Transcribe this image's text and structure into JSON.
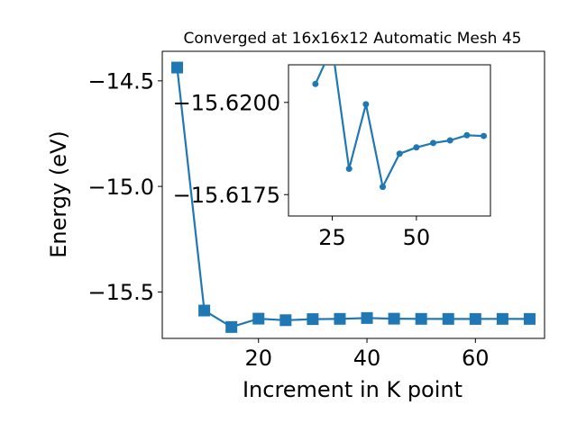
{
  "colors": {
    "series": "#1f77b4",
    "axes": "#000000",
    "background": "#ffffff"
  },
  "chart_data": [
    {
      "type": "line",
      "title": "Converged at 16x16x12 Automatic Mesh 45",
      "xlabel": "Increment in K point",
      "ylabel": "Energy (eV)",
      "marker": "square",
      "grid": false,
      "legend": "none",
      "xlim": [
        2.25,
        72.75
      ],
      "ylim": [
        -15.72,
        -14.36
      ],
      "xticks": [
        20,
        40,
        60
      ],
      "yticks": [
        -14.5,
        -15.0,
        -15.5
      ],
      "xtick_labels": [
        "20",
        "40",
        "60"
      ],
      "ytick_labels": [
        "−14.5",
        "−15.0",
        "−15.5"
      ],
      "x": [
        5,
        10,
        15,
        20,
        25,
        30,
        35,
        40,
        45,
        50,
        55,
        60,
        65,
        70
      ],
      "y": [
        -14.437,
        -15.588,
        -15.666,
        -15.6265,
        -15.6338,
        -15.6287,
        -15.6275,
        -15.6235,
        -15.6267,
        -15.6275,
        -15.6277,
        -15.6279,
        -15.6276,
        -15.6277
      ]
    },
    {
      "type": "line",
      "title": "",
      "xlabel": "",
      "ylabel": "",
      "marker": "circle",
      "grid": false,
      "legend": "none",
      "inset": true,
      "xlim": [
        12,
        72
      ],
      "ylim": [
        -15.61692,
        -15.62102
      ],
      "xticks": [
        25,
        50
      ],
      "yticks": [
        -15.62,
        -15.6175
      ],
      "xtick_labels": [
        "25",
        "50"
      ],
      "ytick_labels": [
        "−15.6200",
        "−15.6175"
      ],
      "x": [
        20,
        25,
        30,
        35,
        40,
        45,
        50,
        55,
        60,
        65,
        70
      ],
      "y": [
        -15.6205,
        -15.6215,
        -15.6182,
        -15.61995,
        -15.61771,
        -15.61861,
        -15.61878,
        -15.6189,
        -15.61897,
        -15.61911,
        -15.61909
      ]
    }
  ]
}
